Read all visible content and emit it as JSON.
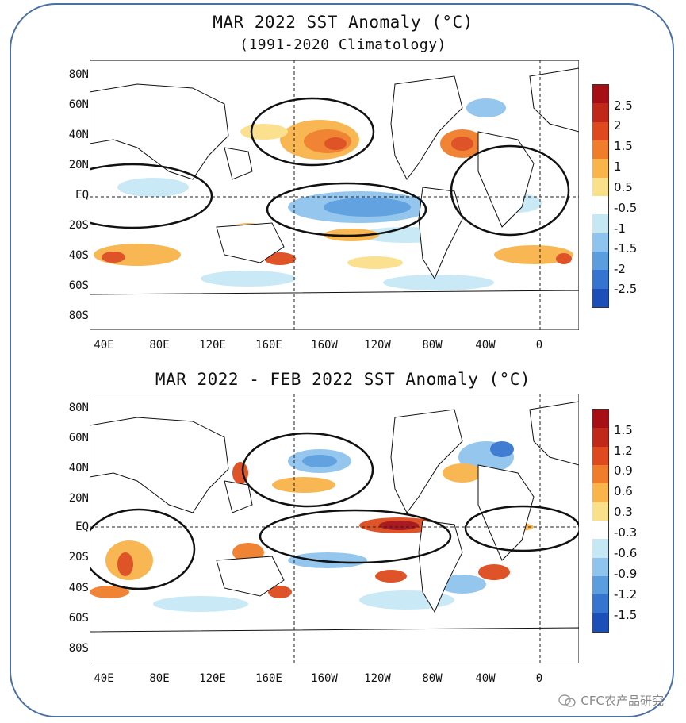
{
  "panels": [
    {
      "title_line1": "MAR 2022 SST Anomaly (°C)",
      "title_line2": "(1991-2020 Climatology)",
      "lat_labels": [
        "80N",
        "60N",
        "40N",
        "20N",
        "EQ",
        "20S",
        "40S",
        "60S",
        "80S"
      ],
      "lon_labels": [
        "40E",
        "80E",
        "120E",
        "160E",
        "160W",
        "120W",
        "80W",
        "40W",
        "0"
      ],
      "colorbar_labels": [
        "2.5",
        "2",
        "1.5",
        "1",
        "0.5",
        "-0.5",
        "-1",
        "-1.5",
        "-2",
        "-2.5"
      ],
      "colorbar_colors": [
        "#a50f15",
        "#c0281a",
        "#de4a1e",
        "#f07d2a",
        "#f9b44a",
        "#fbe08a",
        "#ffffff",
        "#c6e8f5",
        "#8fc4ee",
        "#5a9ee0",
        "#3575d0",
        "#1c4fb8"
      ]
    },
    {
      "title_line1": "MAR 2022 - FEB 2022 SST Anomaly (°C)",
      "lat_labels": [
        "80N",
        "60N",
        "40N",
        "20N",
        "EQ",
        "20S",
        "40S",
        "60S",
        "80S"
      ],
      "lon_labels": [
        "40E",
        "80E",
        "120E",
        "160E",
        "160W",
        "120W",
        "80W",
        "40W",
        "0"
      ],
      "colorbar_labels": [
        "1.5",
        "1.2",
        "0.9",
        "0.6",
        "0.3",
        "-0.3",
        "-0.6",
        "-0.9",
        "-1.2",
        "-1.5"
      ],
      "colorbar_colors": [
        "#a50f15",
        "#c0281a",
        "#de4a1e",
        "#f07d2a",
        "#f9b44a",
        "#fbe08a",
        "#ffffff",
        "#c6e8f5",
        "#8fc4ee",
        "#5a9ee0",
        "#3575d0",
        "#1c4fb8"
      ]
    }
  ],
  "watermark": "CFC农产品研究"
}
